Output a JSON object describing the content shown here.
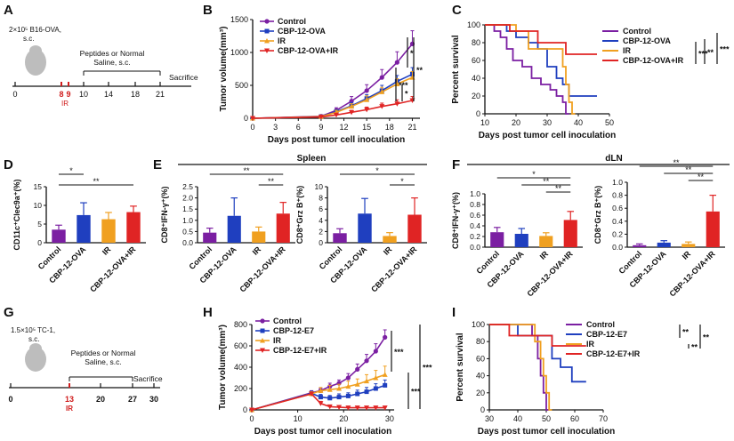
{
  "colors": {
    "control": "#7b1fa2",
    "cbp": "#1f3fbf",
    "ir": "#f0a020",
    "combo": "#e02424",
    "axis": "#111111",
    "red": "#d01c1c"
  },
  "panels": {
    "A": {
      "label": "A",
      "dose_line1": "2×10⁵ B16-OVA,",
      "dose_line2": "s.c.",
      "treat_line1": "Peptides or Normal",
      "treat_line2": "Saline, s.c.",
      "sacrifice": "Sacrifice",
      "ticks": [
        "0",
        "8",
        "9",
        "10",
        "14",
        "18",
        "21"
      ],
      "ir_label": "IR"
    },
    "D": {
      "label": "D"
    },
    "E": {
      "label": "E",
      "section_title": "Spleen"
    },
    "F": {
      "label": "F",
      "section_title": "dLN"
    },
    "G": {
      "label": "G",
      "dose_line1": "1.5×10⁵ TC-1,",
      "dose_line2": "s.c.",
      "treat_line1": "Peptides or Normal",
      "treat_line2": "Saline, s.c.",
      "sacrifice": "Sacrifice",
      "ticks": [
        "0",
        "13",
        "20",
        "27",
        "30"
      ],
      "ir_label": "IR"
    }
  },
  "chart_data": [
    {
      "id": "B",
      "panel_label": "B",
      "type": "line",
      "xlabel": "Days post tumor cell inoculation",
      "ylabel": "Tumor volume(mm³)",
      "xlim": [
        0,
        22
      ],
      "ylim": [
        0,
        1500
      ],
      "xticks": [
        "0",
        "3",
        "6",
        "9",
        "12",
        "15",
        "18",
        "21"
      ],
      "yticks": [
        "0",
        "500",
        "1000",
        "1500"
      ],
      "x": [
        0,
        9,
        11,
        13,
        15,
        17,
        19,
        21
      ],
      "legend": [
        "Control",
        "CBP-12-OVA",
        "IR",
        "CBP-12-OVA+IR"
      ],
      "series": [
        {
          "name": "Control",
          "color": "#7b1fa2",
          "marker": "circle",
          "values": [
            0,
            30,
            120,
            260,
            420,
            620,
            850,
            1130
          ],
          "err": [
            0,
            10,
            40,
            70,
            90,
            120,
            160,
            200
          ]
        },
        {
          "name": "CBP-12-OVA",
          "color": "#1f3fbf",
          "marker": "square",
          "values": [
            0,
            25,
            100,
            190,
            300,
            420,
            560,
            670
          ],
          "err": [
            0,
            10,
            30,
            50,
            60,
            80,
            90,
            100
          ]
        },
        {
          "name": "IR",
          "color": "#f0a020",
          "marker": "triangle",
          "values": [
            0,
            25,
            90,
            180,
            280,
            400,
            520,
            620
          ],
          "err": [
            0,
            10,
            30,
            40,
            60,
            70,
            80,
            90
          ]
        },
        {
          "name": "CBP-12-OVA+IR",
          "color": "#e02424",
          "marker": "triangle-down",
          "values": [
            0,
            20,
            50,
            90,
            130,
            180,
            220,
            270
          ],
          "err": [
            0,
            5,
            20,
            30,
            40,
            50,
            60,
            60
          ]
        }
      ],
      "sig": [
        "*",
        "***",
        "*",
        "**"
      ]
    },
    {
      "id": "C",
      "panel_label": "C",
      "type": "line",
      "xlabel": "Days post tumor cell inoculation",
      "ylabel": "Percent survival",
      "xlim": [
        10,
        50
      ],
      "ylim": [
        0,
        100
      ],
      "xticks": [
        "10",
        "20",
        "30",
        "40",
        "50"
      ],
      "yticks": [
        "0",
        "20",
        "40",
        "60",
        "80",
        "100"
      ],
      "legend": [
        "Control",
        "CBP-12-OVA",
        "IR",
        "CBP-12-OVA+IR"
      ],
      "series": [
        {
          "name": "Control",
          "color": "#7b1fa2",
          "steps": [
            [
              10,
              100
            ],
            [
              13,
              100
            ],
            [
              13,
              93
            ],
            [
              15,
              93
            ],
            [
              15,
              86
            ],
            [
              17,
              86
            ],
            [
              17,
              73
            ],
            [
              19,
              73
            ],
            [
              19,
              60
            ],
            [
              22,
              60
            ],
            [
              22,
              53
            ],
            [
              25,
              53
            ],
            [
              25,
              40
            ],
            [
              28,
              40
            ],
            [
              28,
              33
            ],
            [
              31,
              33
            ],
            [
              31,
              27
            ],
            [
              33,
              27
            ],
            [
              33,
              20
            ],
            [
              35,
              20
            ],
            [
              35,
              13
            ],
            [
              36,
              13
            ],
            [
              36,
              0
            ],
            [
              37,
              0
            ]
          ]
        },
        {
          "name": "CBP-12-OVA",
          "color": "#1f3fbf",
          "steps": [
            [
              10,
              100
            ],
            [
              17,
              100
            ],
            [
              17,
              93
            ],
            [
              20,
              93
            ],
            [
              20,
              86
            ],
            [
              24,
              86
            ],
            [
              24,
              80
            ],
            [
              27,
              80
            ],
            [
              27,
              73
            ],
            [
              30,
              73
            ],
            [
              30,
              53
            ],
            [
              33,
              53
            ],
            [
              33,
              40
            ],
            [
              35,
              40
            ],
            [
              35,
              33
            ],
            [
              37,
              33
            ],
            [
              37,
              20
            ],
            [
              46,
              20
            ]
          ]
        },
        {
          "name": "IR",
          "color": "#f0a020",
          "steps": [
            [
              10,
              100
            ],
            [
              20,
              100
            ],
            [
              20,
              93
            ],
            [
              24,
              93
            ],
            [
              24,
              73
            ],
            [
              35,
              73
            ],
            [
              35,
              53
            ],
            [
              36,
              53
            ],
            [
              36,
              33
            ],
            [
              37,
              33
            ],
            [
              37,
              13
            ],
            [
              38,
              13
            ],
            [
              38,
              0
            ],
            [
              39,
              0
            ]
          ]
        },
        {
          "name": "CBP-12-OVA+IR",
          "color": "#e02424",
          "steps": [
            [
              10,
              100
            ],
            [
              18,
              100
            ],
            [
              18,
              93
            ],
            [
              27,
              93
            ],
            [
              27,
              80
            ],
            [
              36,
              80
            ],
            [
              36,
              67
            ],
            [
              46,
              67
            ]
          ]
        }
      ],
      "sig": [
        "***",
        "**",
        "***"
      ]
    },
    {
      "id": "D",
      "type": "bar",
      "ylabel": "CD11c⁺Clec9a⁺(%)",
      "ylim": [
        0,
        15
      ],
      "yticks": [
        "0",
        "5",
        "10",
        "15"
      ],
      "categories": [
        "Control",
        "CBP-12-OVA",
        "IR",
        "CBP-12-OVA+IR"
      ],
      "values": [
        3.5,
        7.4,
        6.3,
        8.2
      ],
      "err": [
        1.2,
        3.3,
        1.8,
        1.6
      ],
      "sig": [
        {
          "from": 0,
          "to": 1,
          "label": "*"
        },
        {
          "from": 0,
          "to": 3,
          "label": "**"
        }
      ]
    },
    {
      "id": "E1",
      "type": "bar",
      "ylabel": "CD8⁺IFN-γ⁺(%)",
      "ylim": [
        0,
        2.5
      ],
      "yticks": [
        "0.0",
        "0.5",
        "1.0",
        "1.5",
        "2.0",
        "2.5"
      ],
      "categories": [
        "Control",
        "CBP-12-OVA",
        "IR",
        "CBP-12-OVA+IR"
      ],
      "values": [
        0.45,
        1.2,
        0.5,
        1.3
      ],
      "err": [
        0.2,
        0.8,
        0.2,
        0.5
      ],
      "sig": [
        {
          "from": 0,
          "to": 3,
          "label": "**"
        },
        {
          "from": 2,
          "to": 3,
          "label": "**"
        }
      ]
    },
    {
      "id": "E2",
      "type": "bar",
      "ylabel": "CD8⁺Grz B⁺(%)",
      "ylim": [
        0,
        10
      ],
      "yticks": [
        "0",
        "2",
        "4",
        "6",
        "8",
        "10"
      ],
      "categories": [
        "Control",
        "CBP-12-OVA",
        "IR",
        "CBP-12-OVA+IR"
      ],
      "values": [
        1.7,
        5.2,
        1.2,
        5.0
      ],
      "err": [
        0.8,
        2.7,
        0.6,
        3.0
      ],
      "sig": [
        {
          "from": 0,
          "to": 3,
          "label": "*"
        },
        {
          "from": 2,
          "to": 3,
          "label": "*"
        }
      ]
    },
    {
      "id": "F1",
      "type": "bar",
      "ylabel": "CD8⁺IFN-γ⁺(%)",
      "ylim": [
        0,
        1.0
      ],
      "yticks": [
        "0.0",
        "0.2",
        "0.4",
        "0.6",
        "0.8",
        "1.0"
      ],
      "categories": [
        "Control",
        "CBP-12-OVA",
        "IR",
        "CBP-12-OVA+IR"
      ],
      "values": [
        0.28,
        0.25,
        0.21,
        0.51
      ],
      "err": [
        0.09,
        0.1,
        0.06,
        0.16
      ],
      "sig": [
        {
          "from": 0,
          "to": 3,
          "label": "*"
        },
        {
          "from": 1,
          "to": 3,
          "label": "**"
        },
        {
          "from": 2,
          "to": 3,
          "label": "**"
        }
      ]
    },
    {
      "id": "F2",
      "type": "bar",
      "ylabel": "CD8⁺Grz B⁺(%)",
      "ylim": [
        0,
        1.0
      ],
      "yticks": [
        "0.0",
        "0.2",
        "0.4",
        "0.6",
        "0.8",
        "1.0"
      ],
      "categories": [
        "Control",
        "CBP-12-OVA",
        "IR",
        "CBP-12-OVA+IR"
      ],
      "values": [
        0.03,
        0.07,
        0.05,
        0.55
      ],
      "err": [
        0.02,
        0.03,
        0.03,
        0.25
      ],
      "sig": [
        {
          "from": 0,
          "to": 3,
          "label": "**"
        },
        {
          "from": 1,
          "to": 3,
          "label": "**"
        },
        {
          "from": 2,
          "to": 3,
          "label": "**"
        }
      ]
    },
    {
      "id": "H",
      "panel_label": "H",
      "type": "line",
      "xlabel": "Days post tumor cell inoculation",
      "ylabel": "Tumor volume(mm³)",
      "xlim": [
        0,
        31
      ],
      "ylim": [
        0,
        800
      ],
      "xticks": [
        "0",
        "10",
        "20",
        "30"
      ],
      "yticks": [
        "0",
        "200",
        "400",
        "600",
        "800"
      ],
      "x": [
        0,
        13,
        15,
        17,
        19,
        21,
        23,
        25,
        27,
        29
      ],
      "legend": [
        "Control",
        "CBP-12-E7",
        "IR",
        "CBP-12-E7+IR"
      ],
      "series": [
        {
          "name": "Control",
          "color": "#7b1fa2",
          "marker": "circle",
          "values": [
            0,
            160,
            180,
            220,
            250,
            300,
            380,
            460,
            550,
            680
          ],
          "err": [
            0,
            20,
            20,
            30,
            30,
            40,
            50,
            60,
            70,
            70
          ]
        },
        {
          "name": "CBP-12-E7",
          "color": "#1f3fbf",
          "marker": "square",
          "values": [
            0,
            155,
            120,
            110,
            120,
            130,
            150,
            170,
            200,
            230
          ],
          "err": [
            0,
            20,
            25,
            25,
            30,
            30,
            35,
            40,
            45,
            50
          ]
        },
        {
          "name": "IR",
          "color": "#f0a020",
          "marker": "triangle",
          "values": [
            0,
            150,
            180,
            190,
            200,
            220,
            240,
            270,
            300,
            330
          ],
          "err": [
            0,
            20,
            30,
            40,
            40,
            50,
            50,
            60,
            70,
            80
          ]
        },
        {
          "name": "CBP-12-E7+IR",
          "color": "#e02424",
          "marker": "triangle-down",
          "values": [
            0,
            150,
            60,
            30,
            25,
            20,
            20,
            20,
            20,
            20
          ],
          "err": [
            0,
            15,
            20,
            10,
            8,
            6,
            6,
            5,
            5,
            5
          ]
        }
      ],
      "sig": [
        "***",
        "***",
        "***"
      ]
    },
    {
      "id": "I",
      "panel_label": "I",
      "type": "line",
      "xlabel": "Days post tumor cell inoculation",
      "ylabel": "Percent survival",
      "xlim": [
        30,
        70
      ],
      "ylim": [
        0,
        100
      ],
      "xticks": [
        "30",
        "40",
        "50",
        "60",
        "70"
      ],
      "yticks": [
        "0",
        "20",
        "40",
        "60",
        "80",
        "100"
      ],
      "legend": [
        "Control",
        "CBP-12-E7",
        "IR",
        "CBP-12-E7+IR"
      ],
      "series": [
        {
          "name": "Control",
          "color": "#7b1fa2",
          "steps": [
            [
              30,
              100
            ],
            [
              45,
              100
            ],
            [
              45,
              87
            ],
            [
              47,
              87
            ],
            [
              47,
              60
            ],
            [
              48,
              60
            ],
            [
              48,
              40
            ],
            [
              49,
              40
            ],
            [
              49,
              20
            ],
            [
              50,
              20
            ],
            [
              50,
              0
            ],
            [
              51,
              0
            ]
          ]
        },
        {
          "name": "CBP-12-E7",
          "color": "#1f3fbf",
          "steps": [
            [
              30,
              100
            ],
            [
              40,
              100
            ],
            [
              40,
              87
            ],
            [
              52,
              87
            ],
            [
              52,
              60
            ],
            [
              55,
              60
            ],
            [
              55,
              50
            ],
            [
              59,
              50
            ],
            [
              59,
              33
            ],
            [
              64,
              33
            ]
          ]
        },
        {
          "name": "IR",
          "color": "#f0a020",
          "steps": [
            [
              30,
              100
            ],
            [
              46,
              100
            ],
            [
              46,
              80
            ],
            [
              48,
              80
            ],
            [
              48,
              60
            ],
            [
              49,
              60
            ],
            [
              49,
              40
            ],
            [
              50,
              40
            ],
            [
              50,
              20
            ],
            [
              51,
              20
            ],
            [
              51,
              0
            ],
            [
              52,
              0
            ]
          ]
        },
        {
          "name": "CBP-12-E7+IR",
          "color": "#e02424",
          "steps": [
            [
              30,
              100
            ],
            [
              37,
              100
            ],
            [
              37,
              87
            ],
            [
              52,
              87
            ],
            [
              52,
              75
            ],
            [
              64,
              75
            ]
          ]
        }
      ],
      "sig": [
        "**",
        "**",
        "**"
      ]
    }
  ]
}
